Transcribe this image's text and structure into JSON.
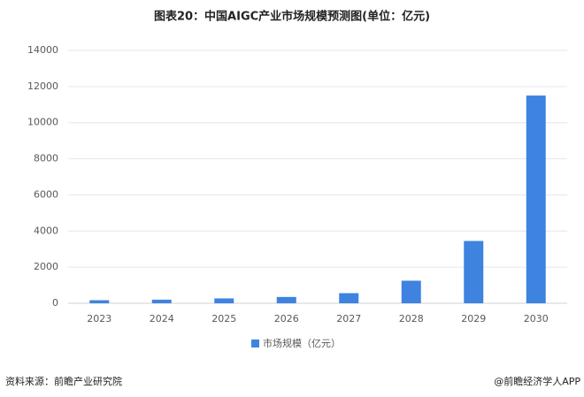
{
  "chart_data": {
    "type": "bar",
    "title": "图表20：中国AIGC产业市场规模预测图(单位：亿元)",
    "categories": [
      "2023",
      "2024",
      "2025",
      "2026",
      "2027",
      "2028",
      "2029",
      "2030"
    ],
    "series": [
      {
        "name": "市场规模（亿元）",
        "color": "#3f83e0",
        "values": [
          170,
          200,
          270,
          350,
          560,
          1250,
          3450,
          11500
        ]
      }
    ],
    "ylim": [
      0,
      14000
    ],
    "yticks": [
      0,
      2000,
      4000,
      6000,
      8000,
      10000,
      12000,
      14000
    ],
    "grid": true,
    "legend": "bottom"
  },
  "footer": {
    "source": "资料来源：前瞻产业研究院",
    "credit": "@前瞻经济学人APP"
  }
}
